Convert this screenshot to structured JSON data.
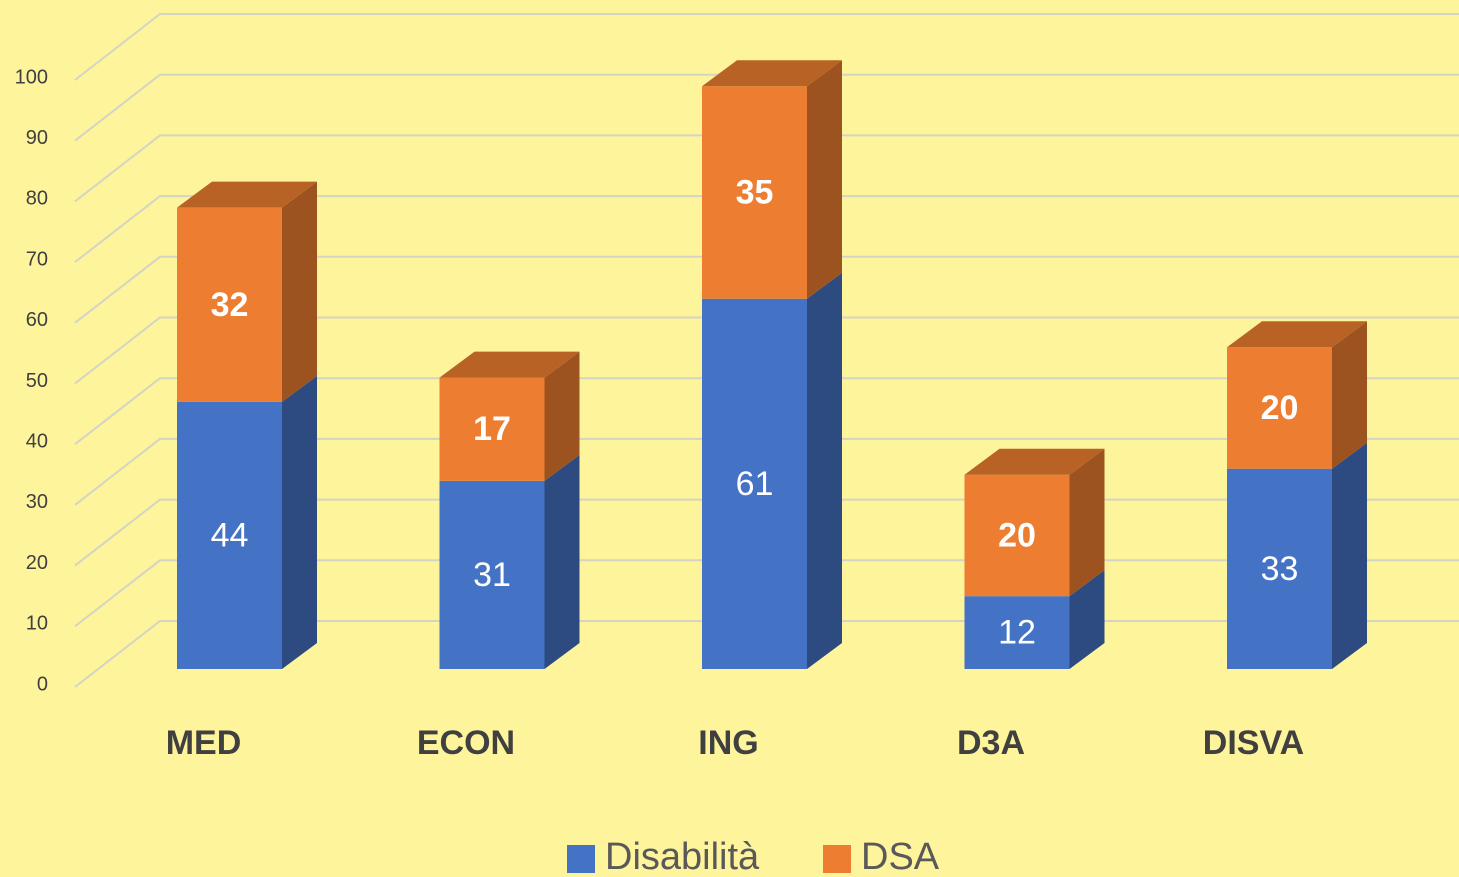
{
  "chart_data": {
    "type": "bar3d_stacked",
    "categories": [
      "MED",
      "ECON",
      "ING",
      "D3A",
      "DISVA"
    ],
    "series": [
      {
        "name": "Disabilità",
        "color": "#4472c4",
        "values": [
          44,
          31,
          61,
          12,
          33
        ]
      },
      {
        "name": "DSA",
        "color": "#ed7d31",
        "values": [
          32,
          17,
          35,
          20,
          20
        ]
      }
    ],
    "ylim": [
      0,
      100
    ],
    "yticks": [
      0,
      10,
      20,
      30,
      40,
      50,
      60,
      70,
      80,
      90,
      100
    ],
    "grid": true,
    "legend": "bottom"
  }
}
